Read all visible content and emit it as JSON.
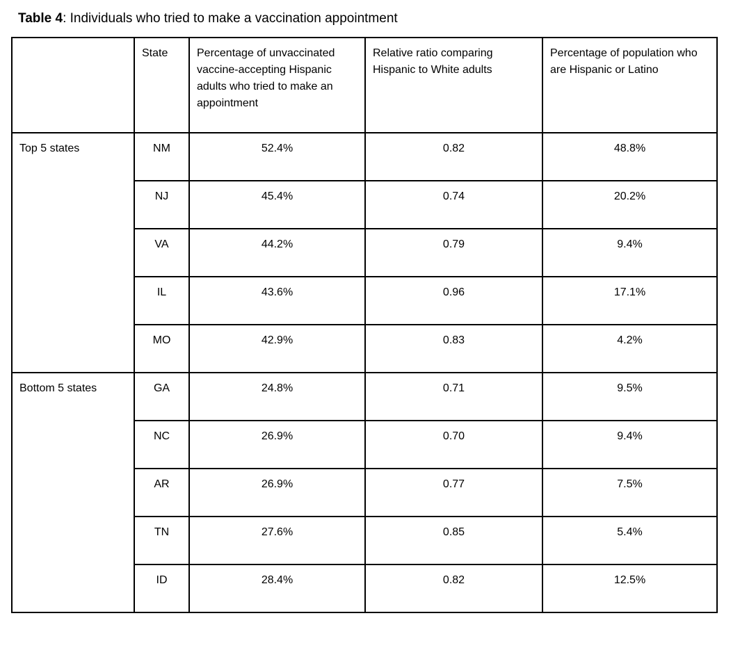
{
  "page": {
    "background": "#ffffff",
    "border_color": "#000000",
    "text_color": "#000000"
  },
  "caption": {
    "label": "Table 4",
    "text": ": Individuals who tried to make a vaccination appointment"
  },
  "table": {
    "headers": {
      "group": "",
      "state": "State",
      "tried": "Percentage of unvaccinated vaccine-accepting Hispanic adults who tried to make an appointment",
      "ratio": "Relative ratio comparing Hispanic to White adults",
      "population": "Percentage of population who are Hispanic or Latino"
    },
    "sections": [
      {
        "group": "Top 5 states",
        "rows": [
          {
            "state": "NM",
            "tried": "52.4%",
            "ratio": "0.82",
            "population": "48.8%"
          },
          {
            "state": "NJ",
            "tried": "45.4%",
            "ratio": "0.74",
            "population": "20.2%"
          },
          {
            "state": "VA",
            "tried": "44.2%",
            "ratio": "0.79",
            "population": "9.4%"
          },
          {
            "state": "IL",
            "tried": "43.6%",
            "ratio": "0.96",
            "population": "17.1%"
          },
          {
            "state": "MO",
            "tried": "42.9%",
            "ratio": "0.83",
            "population": "4.2%"
          }
        ]
      },
      {
        "group": "Bottom 5 states",
        "rows": [
          {
            "state": "GA",
            "tried": "24.8%",
            "ratio": "0.71",
            "population": "9.5%"
          },
          {
            "state": "NC",
            "tried": "26.9%",
            "ratio": "0.70",
            "population": "9.4%"
          },
          {
            "state": "AR",
            "tried": "26.9%",
            "ratio": "0.77",
            "population": "7.5%"
          },
          {
            "state": "TN",
            "tried": "27.6%",
            "ratio": "0.85",
            "population": "5.4%"
          },
          {
            "state": "ID",
            "tried": "28.4%",
            "ratio": "0.82",
            "population": "12.5%"
          }
        ]
      }
    ]
  }
}
